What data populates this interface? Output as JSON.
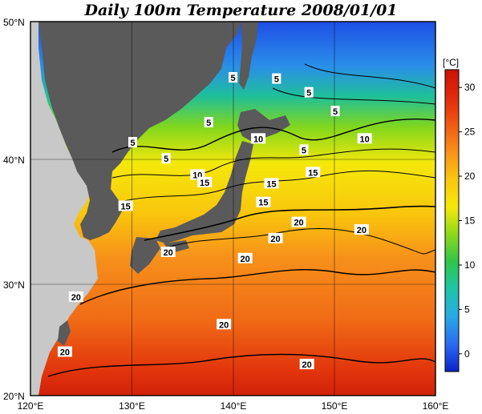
{
  "title": "Daily 100m Temperature 2008/01/01",
  "x_ticks": [
    "120°E",
    "130°E",
    "140°E",
    "150°E",
    "160°E"
  ],
  "y_ticks": [
    "50°N",
    "40°N",
    "30°N",
    "20°N"
  ],
  "colorbar": {
    "unit": "[°C]",
    "ticks": [
      "30",
      "25",
      "20",
      "15",
      "10",
      "5",
      "0"
    ],
    "min": -2,
    "max": 32,
    "stops": [
      "#0c23c8",
      "#2c6bf0",
      "#27a9e6",
      "#1fc4a8",
      "#2ec64a",
      "#8ed81a",
      "#f5e80a",
      "#f9c70d",
      "#f7911a",
      "#f05a14",
      "#e02a0c",
      "#cc1208"
    ]
  },
  "map": {
    "lon_range": [
      120,
      160
    ],
    "lat_range": [
      20,
      50
    ],
    "land_color": "#5a5a5a",
    "light_land_color": "#c8c8c8"
  },
  "contour_labels": [
    {
      "text": "5",
      "lon": 140.0,
      "lat": 45.5
    },
    {
      "text": "5",
      "lon": 144.3,
      "lat": 45.4
    },
    {
      "text": "5",
      "lon": 147.5,
      "lat": 44.3
    },
    {
      "text": "5",
      "lon": 150.1,
      "lat": 42.8
    },
    {
      "text": "5",
      "lon": 137.6,
      "lat": 41.9
    },
    {
      "text": "5",
      "lon": 130.1,
      "lat": 40.3
    },
    {
      "text": "5",
      "lon": 133.4,
      "lat": 39.0
    },
    {
      "text": "5",
      "lon": 147.0,
      "lat": 39.7
    },
    {
      "text": "10",
      "lon": 142.5,
      "lat": 40.6
    },
    {
      "text": "10",
      "lon": 153.0,
      "lat": 40.6
    },
    {
      "text": "10",
      "lon": 136.5,
      "lat": 37.7
    },
    {
      "text": "15",
      "lon": 137.2,
      "lat": 37.1
    },
    {
      "text": "15",
      "lon": 147.9,
      "lat": 37.9
    },
    {
      "text": "15",
      "lon": 143.8,
      "lat": 37.0
    },
    {
      "text": "15",
      "lon": 143.0,
      "lat": 35.5
    },
    {
      "text": "15",
      "lon": 129.4,
      "lat": 35.2
    },
    {
      "text": "20",
      "lon": 146.5,
      "lat": 33.9
    },
    {
      "text": "20",
      "lon": 152.7,
      "lat": 33.3
    },
    {
      "text": "20",
      "lon": 144.2,
      "lat": 32.6
    },
    {
      "text": "20",
      "lon": 133.6,
      "lat": 31.5
    },
    {
      "text": "20",
      "lon": 141.2,
      "lat": 31.0
    },
    {
      "text": "20",
      "lon": 124.5,
      "lat": 27.9
    },
    {
      "text": "20",
      "lon": 139.1,
      "lat": 25.7
    },
    {
      "text": "20",
      "lon": 123.4,
      "lat": 23.5
    },
    {
      "text": "20",
      "lon": 147.3,
      "lat": 22.5
    }
  ]
}
